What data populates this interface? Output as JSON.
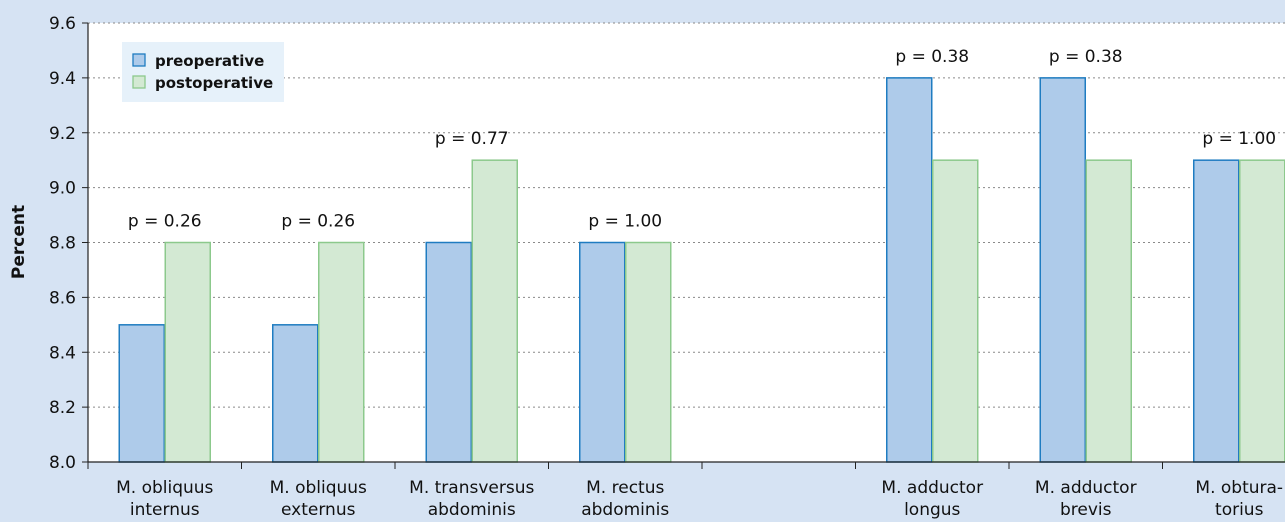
{
  "chart_data": {
    "type": "bar",
    "ylabel": "Percent",
    "ylim": [
      8.0,
      9.6
    ],
    "yticks": [
      "8.0",
      "8.2",
      "8.4",
      "8.6",
      "8.8",
      "9.0",
      "9.2",
      "9.4",
      "9.6"
    ],
    "grid": true,
    "legend_position": "top-left",
    "categories": [
      [
        "M. obliquus",
        "internus"
      ],
      [
        "M. obliquus",
        "externus"
      ],
      [
        "M. transversus",
        "abdominis"
      ],
      [
        "M. rectus",
        "abdominis"
      ],
      [
        "",
        ""
      ],
      [
        "M. adductor",
        "longus"
      ],
      [
        "M. adductor",
        "brevis"
      ],
      [
        "M. obtura-",
        "torius"
      ]
    ],
    "series": [
      {
        "name": "preoperative",
        "color": "#aecbea",
        "stroke": "#1f7cc1",
        "values": [
          8.5,
          8.5,
          8.8,
          8.8,
          null,
          9.4,
          9.4,
          9.1
        ]
      },
      {
        "name": "postoperative",
        "color": "#d3e9d3",
        "stroke": "#8cc98c",
        "values": [
          8.8,
          8.8,
          9.1,
          8.8,
          null,
          9.1,
          9.1,
          9.1
        ]
      }
    ],
    "annotations": [
      "p = 0.26",
      "p = 0.26",
      "p = 0.77",
      "p = 1.00",
      "",
      "p = 0.38",
      "p = 0.38",
      "p = 1.00"
    ],
    "colors": {
      "background": "#d6e3f3",
      "plot_background": "#ffffff",
      "legend_background": "#e6f1fa",
      "grid": "#8a8a8a",
      "axis": "#222222",
      "text": "#111111"
    }
  }
}
